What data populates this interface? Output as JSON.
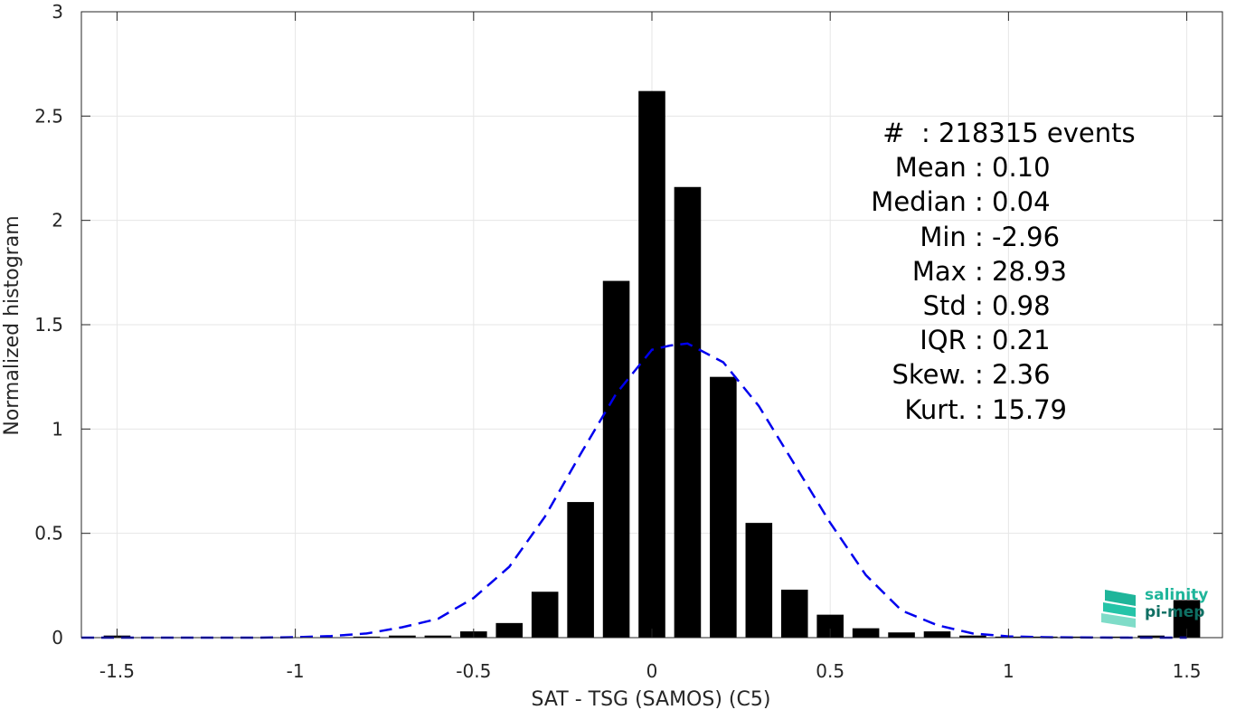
{
  "chart_data": {
    "type": "bar",
    "title": "",
    "xlabel": "SAT - TSG (SAMOS) (C5)",
    "ylabel": "Normalized histogram",
    "xlim": [
      -1.6,
      1.6
    ],
    "ylim": [
      0,
      3
    ],
    "xticks": [
      "-1.5",
      "-1",
      "-0.5",
      "0",
      "0.5",
      "1",
      "1.5"
    ],
    "yticks": [
      "0",
      "0.5",
      "1",
      "1.5",
      "2",
      "2.5",
      "3"
    ],
    "grid": true,
    "bin_width": 0.1,
    "bars": {
      "x": [
        -1.5,
        -1.4,
        -1.3,
        -1.2,
        -1.1,
        -1.0,
        -0.9,
        -0.8,
        -0.7,
        -0.6,
        -0.5,
        -0.4,
        -0.3,
        -0.2,
        -0.1,
        0.0,
        0.1,
        0.2,
        0.3,
        0.4,
        0.5,
        0.6,
        0.7,
        0.8,
        0.9,
        1.0,
        1.1,
        1.2,
        1.3,
        1.4,
        1.5
      ],
      "values": [
        0.01,
        0.0,
        0.0,
        0.0,
        0.0,
        0.0,
        0.0,
        0.005,
        0.01,
        0.01,
        0.03,
        0.07,
        0.22,
        0.65,
        1.71,
        2.62,
        2.16,
        1.25,
        0.55,
        0.23,
        0.11,
        0.045,
        0.025,
        0.03,
        0.01,
        0.005,
        0.005,
        0.005,
        0.005,
        0.01,
        0.18
      ],
      "color": "#000000"
    },
    "fit": {
      "name": "gaussian",
      "style": "dashed",
      "color": "#0000ee",
      "x": [
        -1.6,
        -1.5,
        -1.4,
        -1.3,
        -1.2,
        -1.1,
        -1.0,
        -0.9,
        -0.8,
        -0.7,
        -0.6,
        -0.5,
        -0.4,
        -0.3,
        -0.2,
        -0.1,
        0.0,
        0.05,
        0.1,
        0.2,
        0.3,
        0.4,
        0.5,
        0.6,
        0.7,
        0.8,
        0.9,
        1.0,
        1.1,
        1.2,
        1.3,
        1.4,
        1.5
      ],
      "y": [
        0.0,
        0.0,
        0.0,
        0.0,
        0.0,
        0.0,
        0.002,
        0.008,
        0.02,
        0.05,
        0.09,
        0.19,
        0.34,
        0.58,
        0.88,
        1.17,
        1.38,
        1.4,
        1.41,
        1.32,
        1.11,
        0.83,
        0.55,
        0.3,
        0.13,
        0.06,
        0.02,
        0.006,
        0.002,
        0.001,
        0.0,
        0.0,
        0.0
      ]
    },
    "annotations": [
      {
        "label": "#  ",
        "value": ": 218315 events"
      },
      {
        "label": "Mean ",
        "value": ": 0.10"
      },
      {
        "label": "Median ",
        "value": ": 0.04"
      },
      {
        "label": "Min ",
        "value": ": -2.96"
      },
      {
        "label": "Max ",
        "value": ": 28.93"
      },
      {
        "label": "Std ",
        "value": ": 0.98"
      },
      {
        "label": "IQR ",
        "value": ": 0.21"
      },
      {
        "label": "Skew. ",
        "value": ": 2.36"
      },
      {
        "label": "Kurt. ",
        "value": ": 15.79"
      }
    ]
  },
  "logo": {
    "line1": "salinity",
    "line2": "pi-mep",
    "color1": "#1fb59a",
    "color2": "#0f6f63"
  }
}
